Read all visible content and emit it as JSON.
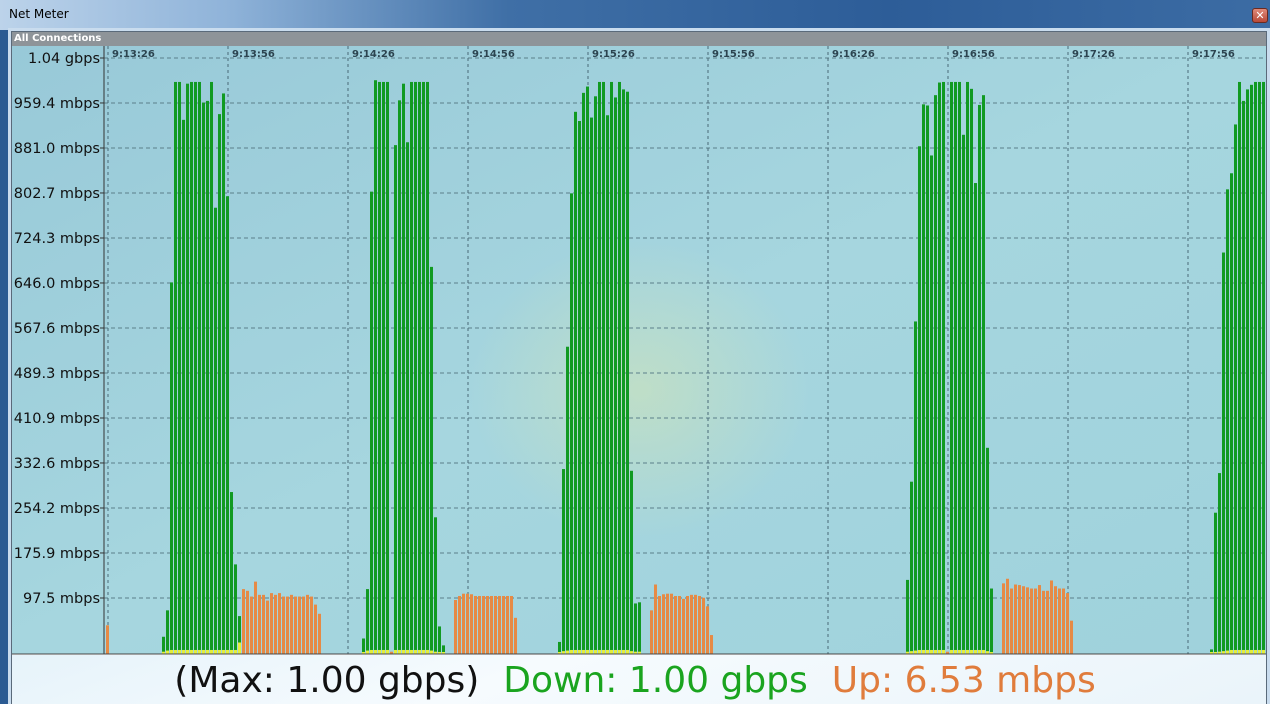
{
  "window": {
    "title": "Net Meter",
    "close_icon": "close-icon"
  },
  "panel": {
    "title": "All Connections"
  },
  "colors": {
    "down": "#119a22",
    "up": "#e68a45",
    "overlap": "#e4ee3a",
    "plot_bg": "#9ed0dc",
    "max_text": "#111111"
  },
  "status": {
    "max": "(Max: 1.00 gbps)",
    "down": "Down: 1.00 gbps",
    "up": "Up: 6.53 mbps"
  },
  "chart_data": {
    "type": "bar",
    "grid": true,
    "x_ticks": [
      "9:13:26",
      "9:13:56",
      "9:14:26",
      "9:14:56",
      "9:15:26",
      "9:15:56",
      "9:16:26",
      "9:16:56",
      "9:17:26",
      "9:17:56"
    ],
    "y_ticks": [
      "1.04 gbps",
      "959.4 mbps",
      "881.0 mbps",
      "802.7 mbps",
      "724.3 mbps",
      "646.0 mbps",
      "567.6 mbps",
      "489.3 mbps",
      "410.9 mbps",
      "332.6 mbps",
      "254.2 mbps",
      "175.9 mbps",
      "97.5 mbps"
    ],
    "y_tick_values_mbps": [
      1037.7,
      959.4,
      881.0,
      802.7,
      724.3,
      646.0,
      567.6,
      489.3,
      410.9,
      332.6,
      254.2,
      175.9,
      97.5
    ],
    "ylim_mbps": [
      0,
      1037.7
    ],
    "x_interval_seconds": 1,
    "series": [
      {
        "name": "Down",
        "segments": [
          {
            "start": "9:13:40",
            "values_mbps": [
              30,
              76,
              647,
              996,
              996,
              930,
              993,
              996,
              996,
              996,
              960,
              963,
              996,
              777,
              940,
              976,
              797,
              282,
              156,
              66
            ]
          },
          {
            "start": "9:14:30",
            "values_mbps": [
              27,
              113,
              805,
              999,
              996,
              996,
              996,
              0,
              886,
              964,
              993,
              891,
              996,
              996,
              996,
              996,
              996,
              674,
              238,
              48,
              15
            ]
          },
          {
            "start": "9:15:19",
            "values_mbps": [
              21,
              322,
              535,
              802,
              944,
              928,
              977,
              988,
              934,
              971,
              996,
              996,
              938,
              996,
              969,
              996,
              983,
              979,
              319,
              88,
              90
            ]
          },
          {
            "start": "9:16:46",
            "values_mbps": [
              129,
              300,
              579,
              884,
              957,
              955,
              868,
              973,
              995,
              996,
              0,
              996,
              996,
              996,
              904,
              996,
              984,
              820,
              956,
              973,
              359,
              114
            ]
          },
          {
            "start": "9:18:02",
            "values_mbps": [
              8,
              246,
              315,
              699,
              809,
              837,
              922,
              996,
              963,
              983,
              991,
              996,
              996,
              996
            ]
          }
        ]
      },
      {
        "name": "Up",
        "segments": [
          {
            "start": "9:13:26",
            "values_mbps": [
              50
            ]
          },
          {
            "start": "9:13:40",
            "values_mbps": [
              4,
              6,
              7,
              7,
              7,
              7,
              7,
              7,
              7,
              7,
              7,
              7,
              7,
              7,
              7,
              7,
              7,
              7,
              7,
              20
            ]
          },
          {
            "start": "9:14:00",
            "values_mbps": [
              113,
              110,
              100,
              126,
              103,
              103,
              93,
              106,
              103,
              106,
              100,
              100,
              103,
              100,
              100,
              100,
              103,
              100,
              86,
              70
            ]
          },
          {
            "start": "9:14:30",
            "values_mbps": [
              3,
              6,
              7,
              7,
              7,
              7,
              7,
              4,
              7,
              7,
              7,
              7,
              7,
              7,
              7,
              7,
              7,
              6,
              4,
              2,
              1
            ]
          },
          {
            "start": "9:14:53",
            "values_mbps": [
              94,
              101,
              105,
              105,
              104,
              101,
              101,
              101,
              101,
              101,
              101,
              101,
              101,
              101,
              101,
              63
            ]
          },
          {
            "start": "9:15:19",
            "values_mbps": [
              2,
              5,
              6,
              7,
              7,
              7,
              7,
              7,
              7,
              7,
              7,
              7,
              7,
              7,
              7,
              7,
              7,
              7,
              5,
              4,
              4
            ]
          },
          {
            "start": "9:15:42",
            "values_mbps": [
              76,
              121,
              101,
              104,
              105,
              105,
              101,
              101,
              96,
              101,
              103,
              103,
              101,
              98,
              83,
              33
            ]
          },
          {
            "start": "9:16:46",
            "values_mbps": [
              4,
              5,
              6,
              7,
              7,
              7,
              7,
              7,
              7,
              7,
              4,
              7,
              7,
              7,
              7,
              7,
              7,
              7,
              7,
              7,
              5,
              3
            ]
          },
          {
            "start": "9:17:10",
            "values_mbps": [
              123,
              131,
              114,
              121,
              120,
              118,
              116,
              114,
              114,
              120,
              110,
              110,
              128,
              118,
              114,
              114,
              106,
              58
            ]
          },
          {
            "start": "9:18:02",
            "values_mbps": [
              1,
              3,
              4,
              5,
              6,
              7,
              7,
              7,
              7,
              7,
              7,
              7,
              7,
              7
            ]
          }
        ]
      }
    ]
  }
}
